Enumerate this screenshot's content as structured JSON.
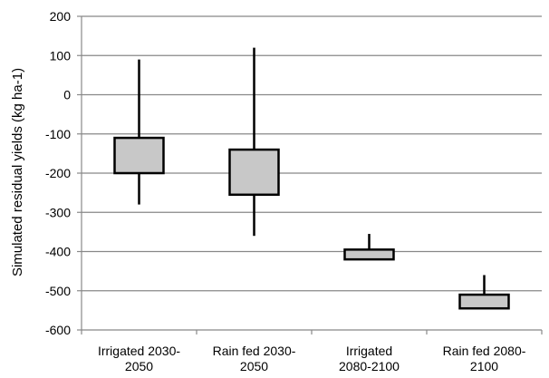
{
  "chart_data": {
    "type": "boxplot",
    "ylabel": "Simulated residual yields (kg ha-1)",
    "xlabel": "",
    "ylim": [
      -600,
      200
    ],
    "yticks": [
      200,
      100,
      0,
      -100,
      -200,
      -300,
      -400,
      -500,
      -600
    ],
    "grid": true,
    "legend": "none",
    "box_color": "#c8c8c8",
    "categories": [
      {
        "label_lines": [
          "Irrigated 2030-",
          "2050"
        ],
        "whisker_max": 90,
        "box_top": -110,
        "box_bottom": -200,
        "whisker_min": -280
      },
      {
        "label_lines": [
          "Rain fed 2030-",
          "2050"
        ],
        "whisker_max": 120,
        "box_top": -140,
        "box_bottom": -255,
        "whisker_min": -360
      },
      {
        "label_lines": [
          "Irrigated",
          "2080-2100"
        ],
        "whisker_max": -355,
        "box_top": -395,
        "box_bottom": -420,
        "whisker_min": null
      },
      {
        "label_lines": [
          "Rain fed 2080-",
          "2100"
        ],
        "whisker_max": -460,
        "box_top": -510,
        "box_bottom": -545,
        "whisker_min": null
      }
    ]
  }
}
